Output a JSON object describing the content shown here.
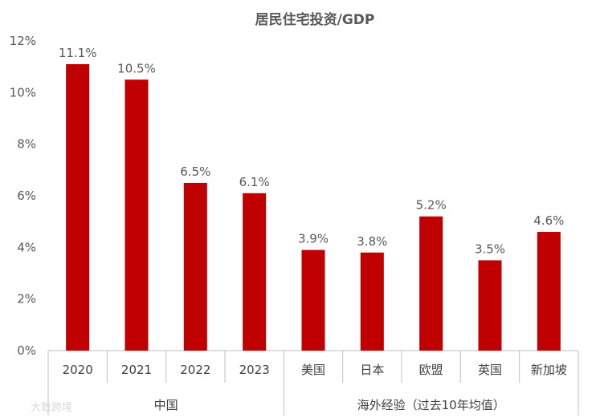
{
  "chart_data": {
    "type": "bar",
    "title": "居民住宅投资/GDP",
    "categories": [
      "2020",
      "2021",
      "2022",
      "2023",
      "美国",
      "日本",
      "欧盟",
      "英国",
      "新加坡"
    ],
    "values": [
      11.1,
      10.5,
      6.5,
      6.1,
      3.9,
      3.8,
      5.2,
      3.5,
      4.6
    ],
    "value_labels": [
      "11.1%",
      "10.5%",
      "6.5%",
      "6.1%",
      "3.9%",
      "3.8%",
      "5.2%",
      "3.5%",
      "4.6%"
    ],
    "ylim": [
      0,
      12
    ],
    "yticks": [
      "0%",
      "2%",
      "4%",
      "6%",
      "8%",
      "10%",
      "12%"
    ],
    "groups": [
      {
        "label": "中国",
        "count": 4
      },
      {
        "label": "海外经验（过去10年均值）",
        "count": 5
      }
    ],
    "xlabel": "",
    "ylabel": "",
    "bar_color": "#C00000",
    "grid": false
  },
  "watermark": "大数跨境"
}
